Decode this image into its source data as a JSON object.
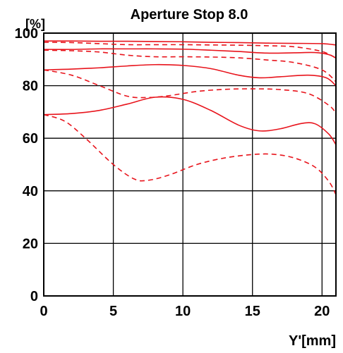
{
  "chart_data": {
    "type": "line",
    "title": "Aperture Stop 8.0",
    "ylabel": "[%]",
    "xlabel": "Y'[mm]",
    "xlim": [
      0,
      21
    ],
    "ylim": [
      0,
      100
    ],
    "xticks": [
      0,
      5,
      10,
      15,
      20
    ],
    "yticks": [
      0,
      20,
      40,
      60,
      80,
      100
    ],
    "grid": true,
    "line_color": "#e8141c",
    "series": [
      {
        "style": "solid",
        "points": [
          [
            0,
            97
          ],
          [
            2,
            97
          ],
          [
            4,
            96.9
          ],
          [
            6,
            96.9
          ],
          [
            8,
            96.8
          ],
          [
            10,
            96.7
          ],
          [
            12,
            96.5
          ],
          [
            14,
            96.4
          ],
          [
            16,
            96.2
          ],
          [
            18,
            96.1
          ],
          [
            20,
            96
          ],
          [
            21,
            95.5
          ]
        ]
      },
      {
        "style": "dashed",
        "points": [
          [
            0,
            96.5
          ],
          [
            2,
            96.4
          ],
          [
            4,
            96
          ],
          [
            6,
            95.6
          ],
          [
            8,
            95.6
          ],
          [
            10,
            95.6
          ],
          [
            12,
            95.5
          ],
          [
            14,
            95.4
          ],
          [
            16,
            95.2
          ],
          [
            18,
            94.8
          ],
          [
            20,
            93
          ],
          [
            21,
            90.5
          ]
        ]
      },
      {
        "style": "solid",
        "points": [
          [
            0,
            93.8
          ],
          [
            2,
            93.8
          ],
          [
            4,
            94
          ],
          [
            6,
            94
          ],
          [
            8,
            94
          ],
          [
            10,
            93.9
          ],
          [
            12,
            93.5
          ],
          [
            14,
            93
          ],
          [
            16,
            92.4
          ],
          [
            18,
            92.5
          ],
          [
            19.5,
            92.6
          ],
          [
            20.5,
            91.8
          ],
          [
            21,
            90.5
          ]
        ]
      },
      {
        "style": "dashed",
        "points": [
          [
            0,
            93.5
          ],
          [
            2,
            93.3
          ],
          [
            4,
            92.8
          ],
          [
            6,
            91.6
          ],
          [
            8,
            91
          ],
          [
            10,
            91
          ],
          [
            12,
            90.9
          ],
          [
            14,
            90.6
          ],
          [
            16,
            89.8
          ],
          [
            18,
            88.8
          ],
          [
            20,
            86
          ],
          [
            21,
            81.5
          ]
        ]
      },
      {
        "style": "solid",
        "points": [
          [
            0,
            86
          ],
          [
            2,
            86.3
          ],
          [
            4,
            86.8
          ],
          [
            6,
            87.5
          ],
          [
            8,
            88
          ],
          [
            10,
            87.7
          ],
          [
            12,
            86.5
          ],
          [
            14,
            84
          ],
          [
            15.5,
            83
          ],
          [
            17,
            83.4
          ],
          [
            19,
            84
          ],
          [
            20.3,
            83
          ],
          [
            21,
            80
          ]
        ]
      },
      {
        "style": "dashed",
        "points": [
          [
            0,
            86
          ],
          [
            2,
            84
          ],
          [
            4,
            80
          ],
          [
            6,
            76
          ],
          [
            7.5,
            75.5
          ],
          [
            9,
            76.2
          ],
          [
            11,
            77.8
          ],
          [
            13,
            78.6
          ],
          [
            15,
            78.8
          ],
          [
            17,
            78.5
          ],
          [
            19,
            77
          ],
          [
            20.5,
            72.5
          ],
          [
            21,
            69.5
          ]
        ]
      },
      {
        "style": "solid",
        "points": [
          [
            0,
            69
          ],
          [
            2,
            69.4
          ],
          [
            4,
            70.6
          ],
          [
            6,
            73
          ],
          [
            8,
            75.6
          ],
          [
            10,
            74.8
          ],
          [
            12,
            70.6
          ],
          [
            14,
            65
          ],
          [
            15.5,
            62.8
          ],
          [
            17,
            63.6
          ],
          [
            18.5,
            65.6
          ],
          [
            19.5,
            65.5
          ],
          [
            20.5,
            61.5
          ],
          [
            21,
            57.5
          ]
        ]
      },
      {
        "style": "dashed",
        "points": [
          [
            0,
            69
          ],
          [
            1.5,
            66.5
          ],
          [
            3,
            60
          ],
          [
            5,
            50
          ],
          [
            6.5,
            44.5
          ],
          [
            7.5,
            44
          ],
          [
            9,
            46
          ],
          [
            11,
            50
          ],
          [
            13,
            52.5
          ],
          [
            15,
            53.8
          ],
          [
            16.5,
            53.9
          ],
          [
            18,
            52.5
          ],
          [
            19.5,
            49
          ],
          [
            20.5,
            43.5
          ],
          [
            21,
            38.5
          ]
        ]
      }
    ]
  }
}
